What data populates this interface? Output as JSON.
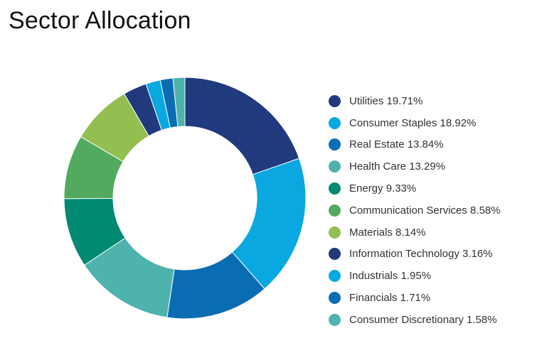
{
  "title": "Sector Allocation",
  "chart_data": {
    "type": "pie",
    "title": "Sector Allocation",
    "legend_position": "right",
    "donut": true,
    "series": [
      {
        "name": "Utilities",
        "label": "Utilities 19.71%",
        "value": 19.71,
        "color": "#1f3a7d"
      },
      {
        "name": "Consumer Staples",
        "label": "Consumer Staples 18.92%",
        "value": 18.92,
        "color": "#0aa8e0"
      },
      {
        "name": "Real Estate",
        "label": "Real Estate 13.84%",
        "value": 13.84,
        "color": "#0a6db3"
      },
      {
        "name": "Health Care",
        "label": "Health Care 13.29%",
        "value": 13.29,
        "color": "#4db3ac"
      },
      {
        "name": "Energy",
        "label": "Energy 9.33%",
        "value": 9.33,
        "color": "#008a72"
      },
      {
        "name": "Communication Services",
        "label": "Communication Services 8.58%",
        "value": 8.58,
        "color": "#52aa5e"
      },
      {
        "name": "Materials",
        "label": "Materials 8.14%",
        "value": 8.14,
        "color": "#92bf50"
      },
      {
        "name": "Information Technology",
        "label": "Information Technology 3.16%",
        "value": 3.16,
        "color": "#1f3a7d"
      },
      {
        "name": "Industrials",
        "label": "Industrials 1.95%",
        "value": 1.95,
        "color": "#0aa8e0"
      },
      {
        "name": "Financials",
        "label": "Financials 1.71%",
        "value": 1.71,
        "color": "#0a6db3"
      },
      {
        "name": "Consumer Discretionary",
        "label": "Consumer Discretionary 1.58%",
        "value": 1.58,
        "color": "#4db3ac"
      }
    ]
  }
}
